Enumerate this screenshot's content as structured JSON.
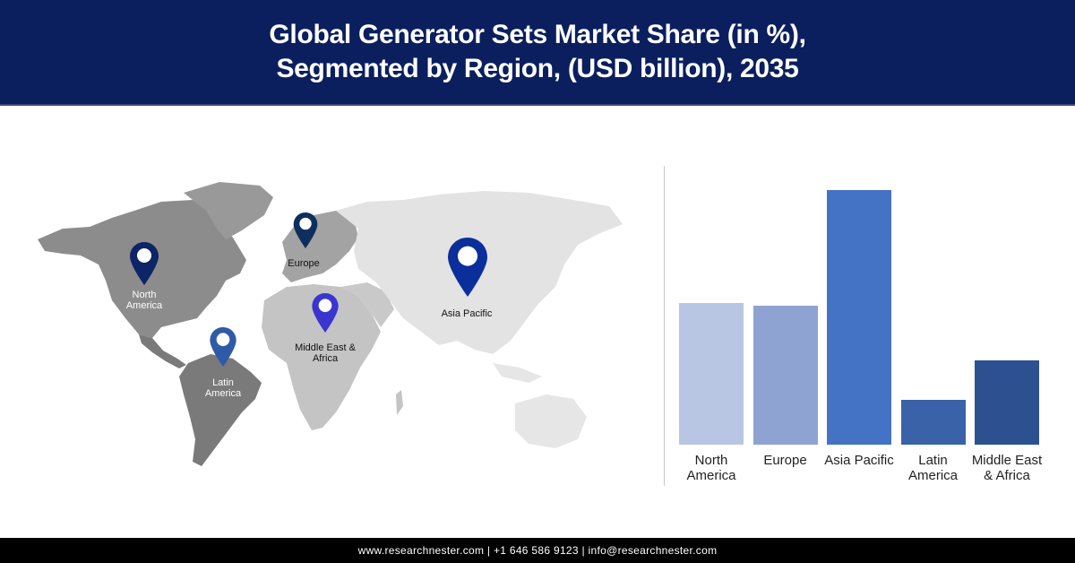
{
  "header": {
    "title_line1": "Global Generator Sets Market Share (in %),",
    "title_line2": "Segmented by Region, (USD billion), 2035"
  },
  "map": {
    "pins": [
      {
        "label_line1": "North",
        "label_line2": "America",
        "color": "#0d2466",
        "icon": "location-pin-icon"
      },
      {
        "label_line1": "Europe",
        "label_line2": "",
        "color": "#0e2f5e",
        "icon": "location-pin-icon"
      },
      {
        "label_line1": "Asia Pacific",
        "label_line2": "",
        "color": "#0b2f9a",
        "icon": "location-pin-icon"
      },
      {
        "label_line1": "Middle East &",
        "label_line2": "Africa",
        "color": "#3b35d0",
        "icon": "location-pin-icon"
      },
      {
        "label_line1": "Latin",
        "label_line2": "America",
        "color": "#2e5aa8",
        "icon": "location-pin-icon"
      }
    ]
  },
  "chart_data": {
    "type": "bar",
    "title": "Global Generator Sets Market Share (in %), Segmented by Region, (USD billion), 2035",
    "categories": [
      "North America",
      "Europe",
      "Asia Pacific",
      "Latin America",
      "Middle East & Africa"
    ],
    "category_lines": [
      [
        "North",
        "America"
      ],
      [
        "Europe",
        ""
      ],
      [
        "Asia Pacific",
        ""
      ],
      [
        "Latin",
        "America"
      ],
      [
        "Middle East",
        "& Africa"
      ]
    ],
    "values": [
      158,
      155,
      284,
      50,
      94
    ],
    "value_note": "relative bar heights (no axis shown)",
    "colors": [
      "#b8c5e3",
      "#8fa3d3",
      "#4472c4",
      "#3a62a9",
      "#2d5091"
    ],
    "xlabel": "",
    "ylabel": "",
    "grid": false,
    "legend": "none"
  },
  "footer": {
    "contact": "www.researchnester.com | +1 646 586 9123 | info@researchnester.com"
  }
}
